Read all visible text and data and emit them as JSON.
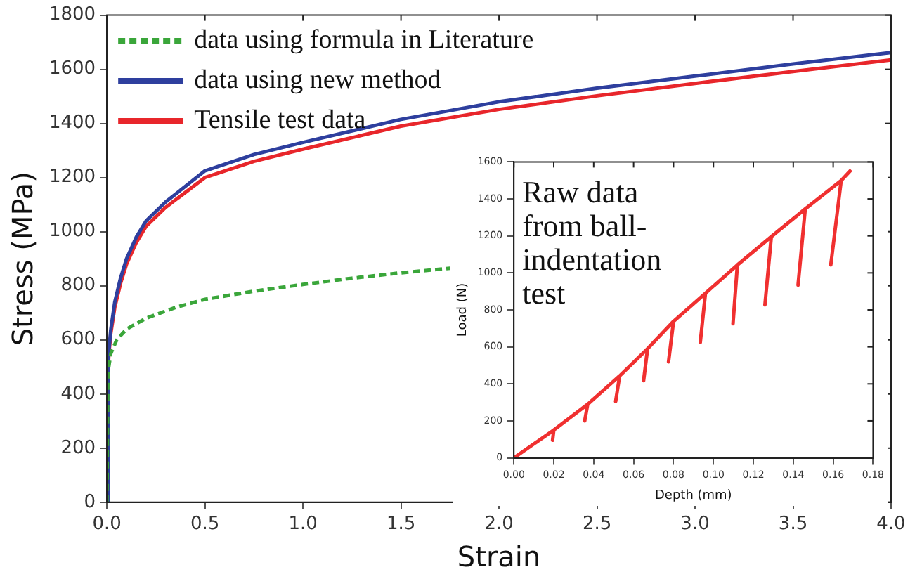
{
  "chart_data": [
    {
      "type": "line",
      "xlabel": "Strain",
      "ylabel": "Stress (MPa)",
      "xlim": [
        0,
        4
      ],
      "ylim": [
        0,
        1800
      ],
      "xticks": [
        {
          "value": 0,
          "label": "0.0"
        },
        {
          "value": 0.5,
          "label": "0.5"
        },
        {
          "value": 1,
          "label": "1.0"
        },
        {
          "value": 1.5,
          "label": "1.5"
        },
        {
          "value": 2,
          "label": "2.0"
        },
        {
          "value": 2.5,
          "label": "2.5"
        },
        {
          "value": 3,
          "label": "3.0"
        },
        {
          "value": 3.5,
          "label": "3.5"
        },
        {
          "value": 4,
          "label": "4.0"
        }
      ],
      "yticks": [
        0,
        200,
        400,
        600,
        800,
        1000,
        1200,
        1400,
        1600,
        1800
      ],
      "grid": false,
      "legend": "top left",
      "marker": "none",
      "series": [
        {
          "name": "data using formula in Literature",
          "color": "#3aa63a",
          "line_style": "dashed",
          "x": [
            0,
            0.005,
            0.02,
            0.05,
            0.1,
            0.2,
            0.35,
            0.5,
            0.75,
            1,
            1.25,
            1.5,
            1.75
          ],
          "values": [
            0,
            480,
            550,
            600,
            640,
            680,
            720,
            750,
            780,
            805,
            828,
            848,
            865
          ]
        },
        {
          "name": "data using new method",
          "color": "#2e3f9e",
          "line_style": "solid",
          "x": [
            0,
            0.005,
            0.01,
            0.02,
            0.04,
            0.07,
            0.1,
            0.15,
            0.2,
            0.3,
            0.5,
            0.75,
            1,
            1.5,
            2,
            2.5,
            3,
            3.5,
            4
          ],
          "values": [
            0,
            480,
            560,
            640,
            740,
            830,
            900,
            980,
            1040,
            1110,
            1225,
            1285,
            1330,
            1415,
            1480,
            1530,
            1575,
            1620,
            1662
          ]
        },
        {
          "name": "Tensile test data",
          "color": "#e8262b",
          "line_style": "solid",
          "x": [
            0,
            0.005,
            0.01,
            0.02,
            0.04,
            0.07,
            0.1,
            0.15,
            0.2,
            0.3,
            0.5,
            0.75,
            1,
            1.5,
            2,
            2.5,
            3,
            3.5,
            4
          ],
          "values": [
            0,
            470,
            550,
            625,
            720,
            810,
            880,
            960,
            1020,
            1090,
            1200,
            1260,
            1305,
            1390,
            1452,
            1502,
            1548,
            1592,
            1635
          ]
        }
      ]
    },
    {
      "type": "line",
      "xlabel": "Depth (mm)",
      "ylabel": "Load (N)",
      "xlim": [
        0,
        0.18
      ],
      "ylim": [
        0,
        1600
      ],
      "xticks": [
        {
          "value": 0,
          "label": "0.00"
        },
        {
          "value": 0.02,
          "label": "0.02"
        },
        {
          "value": 0.04,
          "label": "0.04"
        },
        {
          "value": 0.06,
          "label": "0.06"
        },
        {
          "value": 0.08,
          "label": "0.08"
        },
        {
          "value": 0.1,
          "label": "0.10"
        },
        {
          "value": 0.12,
          "label": "0.12"
        },
        {
          "value": 0.14,
          "label": "0.14"
        },
        {
          "value": 0.16,
          "label": "0.16"
        },
        {
          "value": 0.18,
          "label": "0.18"
        }
      ],
      "yticks": [
        0,
        200,
        400,
        600,
        800,
        1000,
        1200,
        1400,
        1600
      ],
      "grid": false,
      "marker": "none",
      "annotations": [
        "Raw data from ball-indentation test"
      ],
      "series": [
        {
          "color": "#f03030",
          "line_style": "solid",
          "x": [
            0,
            0.02,
            0.0194,
            0.02,
            0.037,
            0.0355,
            0.037,
            0.053,
            0.051,
            0.053,
            0.067,
            0.065,
            0.067,
            0.08,
            0.0775,
            0.08,
            0.096,
            0.0934,
            0.096,
            0.112,
            0.1098,
            0.112,
            0.129,
            0.1258,
            0.129,
            0.146,
            0.1424,
            0.146,
            0.164,
            0.1588,
            0.164,
            0.169
          ],
          "values": [
            0,
            150,
            95,
            150,
            290,
            200,
            290,
            443,
            305,
            443,
            590,
            417,
            590,
            738,
            519,
            738,
            890,
            623,
            890,
            1043,
            725,
            1043,
            1196,
            827,
            1196,
            1346,
            934,
            1346,
            1499,
            1043,
            1499,
            1557
          ]
        }
      ]
    }
  ]
}
